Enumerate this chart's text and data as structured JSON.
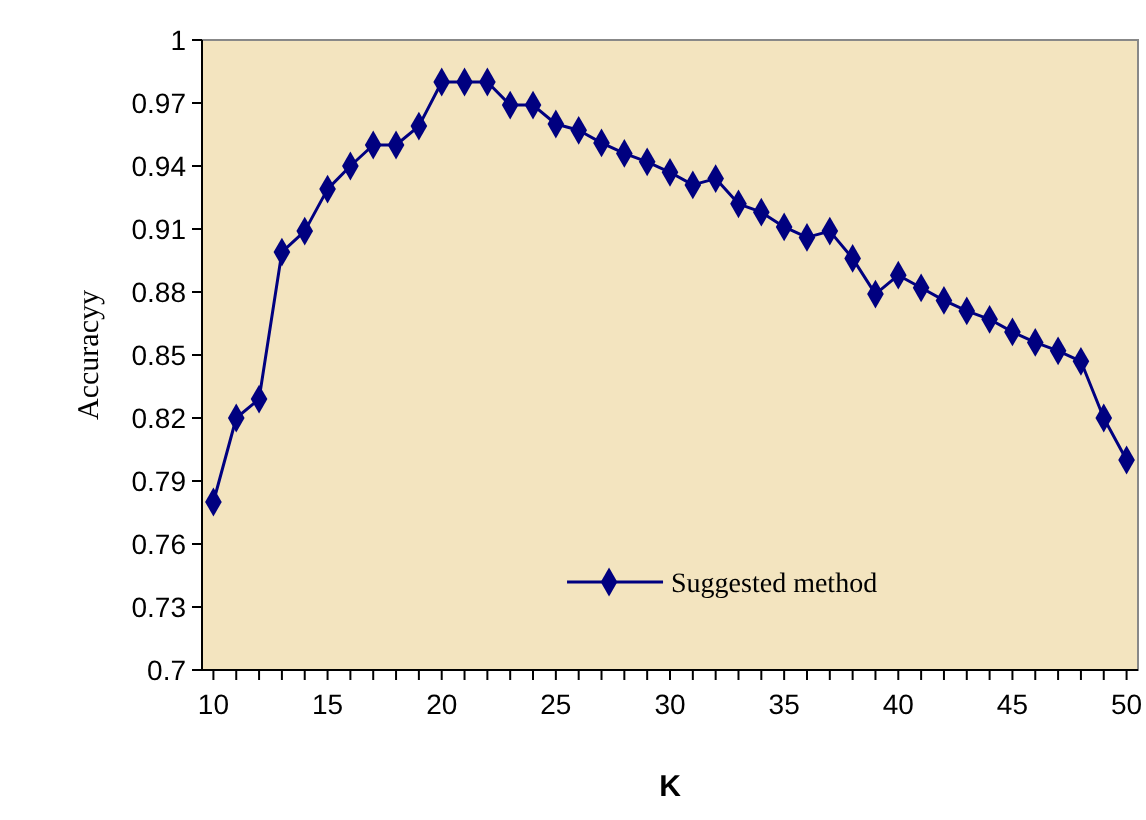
{
  "chart_data": {
    "type": "line",
    "xlabel": "K",
    "ylabel": "Accuracyy",
    "x": [
      10,
      11,
      12,
      13,
      14,
      15,
      16,
      17,
      18,
      19,
      20,
      21,
      22,
      23,
      24,
      25,
      26,
      27,
      28,
      29,
      30,
      31,
      32,
      33,
      34,
      35,
      36,
      37,
      38,
      39,
      40,
      41,
      42,
      43,
      44,
      45,
      46,
      47,
      48,
      49,
      50
    ],
    "series": [
      {
        "name": "Suggested method",
        "color": "#000080",
        "values": [
          0.78,
          0.82,
          0.829,
          0.899,
          0.909,
          0.929,
          0.94,
          0.95,
          0.95,
          0.959,
          0.98,
          0.98,
          0.98,
          0.969,
          0.969,
          0.96,
          0.957,
          0.951,
          0.946,
          0.942,
          0.937,
          0.931,
          0.934,
          0.922,
          0.918,
          0.911,
          0.906,
          0.909,
          0.896,
          0.879,
          0.888,
          0.882,
          0.876,
          0.871,
          0.867,
          0.861,
          0.856,
          0.852,
          0.847,
          0.82,
          0.8
        ]
      }
    ],
    "xlim": [
      9.5,
      50.5
    ],
    "xticks": [
      10,
      {
        "value": 11,
        "label": null
      },
      {
        "value": 12,
        "label": null
      },
      {
        "value": 13,
        "label": null
      },
      {
        "value": 14,
        "label": null
      },
      15,
      {
        "value": 16,
        "label": null
      },
      {
        "value": 17,
        "label": null
      },
      {
        "value": 18,
        "label": null
      },
      {
        "value": 19,
        "label": null
      },
      20,
      {
        "value": 21,
        "label": null
      },
      {
        "value": 22,
        "label": null
      },
      {
        "value": 23,
        "label": null
      },
      {
        "value": 24,
        "label": null
      },
      25,
      {
        "value": 26,
        "label": null
      },
      {
        "value": 27,
        "label": null
      },
      {
        "value": 28,
        "label": null
      },
      {
        "value": 29,
        "label": null
      },
      30,
      {
        "value": 31,
        "label": null
      },
      {
        "value": 32,
        "label": null
      },
      {
        "value": 33,
        "label": null
      },
      {
        "value": 34,
        "label": null
      },
      35,
      {
        "value": 36,
        "label": null
      },
      {
        "value": 37,
        "label": null
      },
      {
        "value": 38,
        "label": null
      },
      {
        "value": 39,
        "label": null
      },
      40,
      {
        "value": 41,
        "label": null
      },
      {
        "value": 42,
        "label": null
      },
      {
        "value": 43,
        "label": null
      },
      {
        "value": 44,
        "label": null
      },
      45,
      {
        "value": 46,
        "label": null
      },
      {
        "value": 47,
        "label": null
      },
      {
        "value": 48,
        "label": null
      },
      {
        "value": 49,
        "label": null
      },
      50
    ],
    "ylim": [
      0.7,
      1
    ],
    "yticks": [
      0.7,
      0.73,
      0.76,
      0.79,
      0.82,
      0.85,
      0.88,
      0.91,
      0.94,
      0.97,
      1
    ],
    "marker": "diamond",
    "line_style": "solid",
    "grid": false,
    "legend": "bottom"
  }
}
